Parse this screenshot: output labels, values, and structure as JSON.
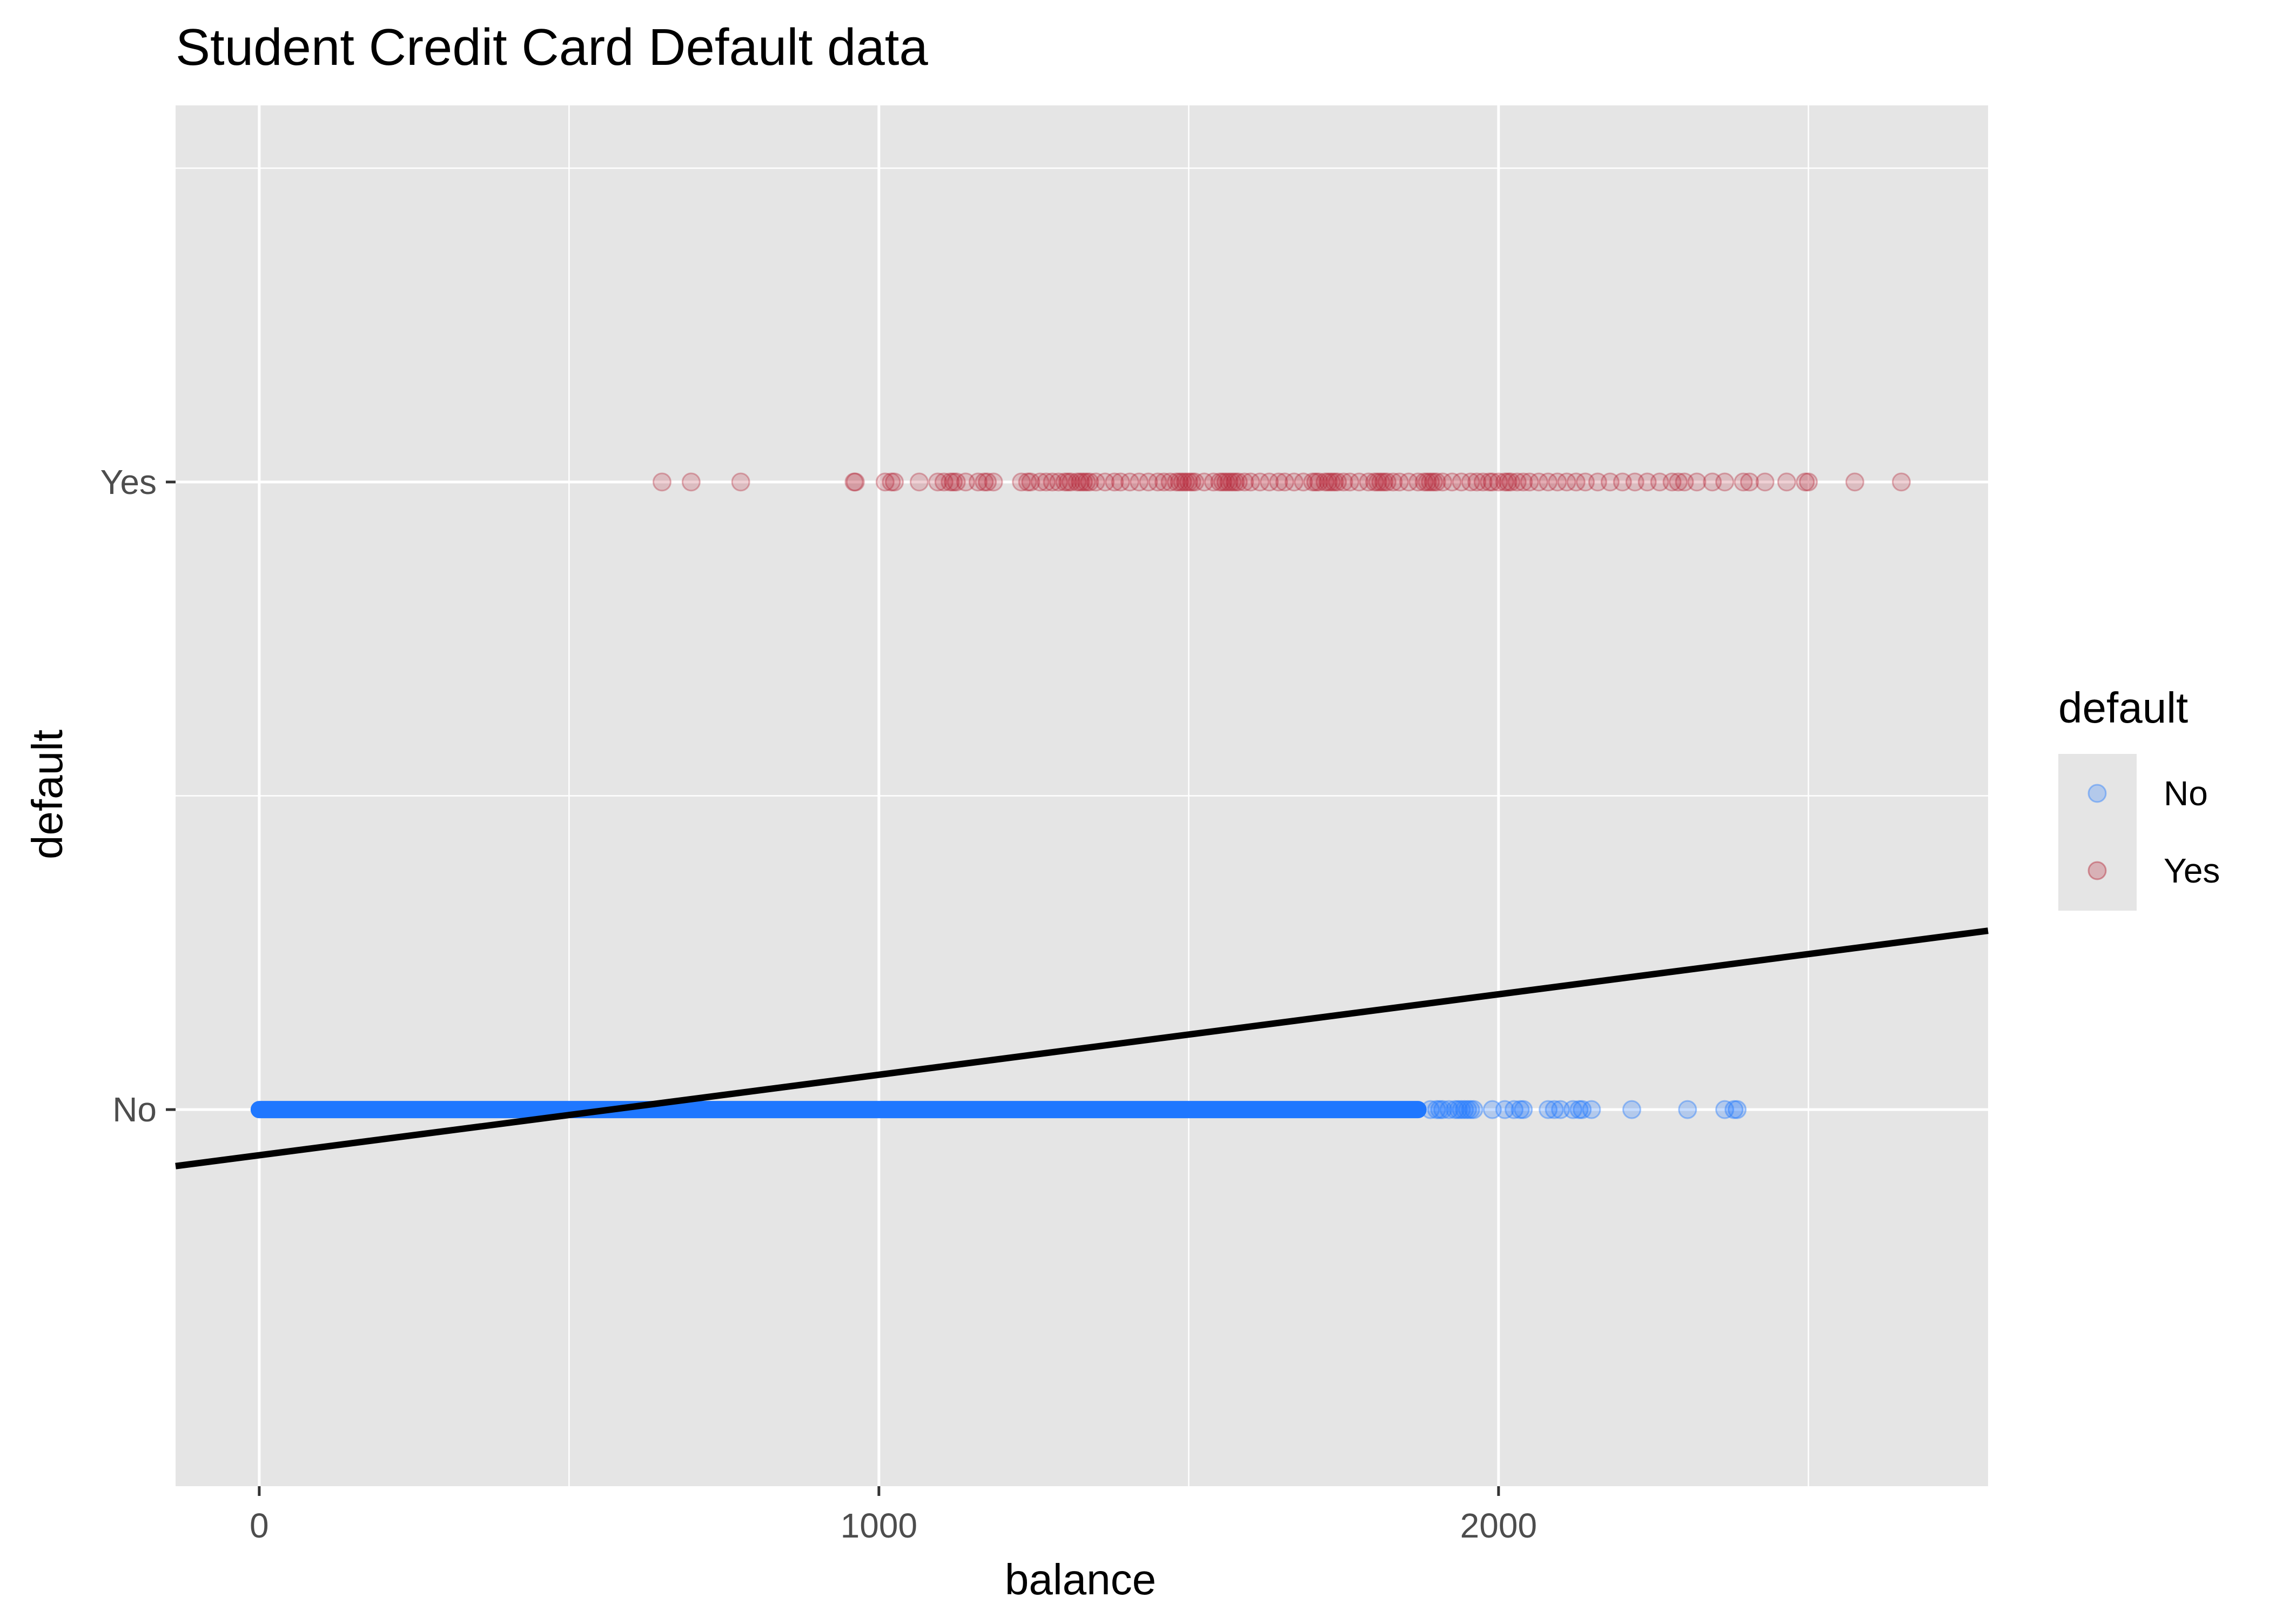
{
  "chart_data": {
    "type": "scatter",
    "title": "Student Credit Card Default data",
    "xlabel": "balance",
    "ylabel": "default",
    "x_ticks": [
      0,
      1000,
      2000
    ],
    "y_categories": [
      "No",
      "Yes"
    ],
    "xlim": [
      -135,
      2790
    ],
    "ylim": [
      0.4,
      2.6
    ],
    "grid": true,
    "legend": {
      "title": "default",
      "placement": "right",
      "entries": [
        {
          "label": "No",
          "color": "#1f77ff"
        },
        {
          "label": "Yes",
          "color": "#b2182b"
        }
      ]
    },
    "series": [
      {
        "name": "No",
        "category": "No",
        "color": "#1f77ff",
        "opacity": 0.25,
        "x": [
          1890,
          1900,
          1905,
          1910,
          1920,
          1930,
          1935,
          1940,
          1945,
          1950,
          1955,
          1960,
          1990,
          2010,
          2025,
          2035,
          2040,
          2080,
          2090,
          2100,
          2120,
          2130,
          2135,
          2150,
          2215,
          2305,
          2365,
          2380,
          2385
        ],
        "dense_range": [
          0,
          1870
        ]
      },
      {
        "name": "Yes",
        "category": "Yes",
        "color": "#b2182b",
        "opacity": 0.2,
        "x": [
          650,
          697,
          777,
          960,
          962,
          1010,
          1020,
          1025,
          1065,
          1095,
          1105,
          1115,
          1120,
          1125,
          1140,
          1160,
          1170,
          1175,
          1185,
          1230,
          1240,
          1245,
          1260,
          1270,
          1280,
          1290,
          1300,
          1305,
          1310,
          1320,
          1325,
          1330,
          1335,
          1340,
          1350,
          1365,
          1380,
          1390,
          1405,
          1420,
          1435,
          1450,
          1460,
          1470,
          1480,
          1485,
          1490,
          1495,
          1500,
          1505,
          1510,
          1525,
          1540,
          1550,
          1555,
          1560,
          1565,
          1570,
          1575,
          1580,
          1590,
          1600,
          1615,
          1630,
          1645,
          1655,
          1670,
          1685,
          1700,
          1705,
          1710,
          1720,
          1725,
          1730,
          1735,
          1740,
          1750,
          1760,
          1775,
          1790,
          1800,
          1805,
          1810,
          1815,
          1820,
          1830,
          1840,
          1855,
          1870,
          1880,
          1885,
          1890,
          1895,
          1900,
          1910,
          1925,
          1940,
          1955,
          1965,
          1975,
          1985,
          1990,
          2000,
          2010,
          2015,
          2020,
          2030,
          2040,
          2050,
          2065,
          2080,
          2095,
          2110,
          2125,
          2140,
          2160,
          2180,
          2200,
          2220,
          2240,
          2260,
          2280,
          2290,
          2300,
          2320,
          2345,
          2365,
          2395,
          2405,
          2430,
          2465,
          2495,
          2500,
          2575,
          2650
        ]
      }
    ],
    "fit_line": {
      "type": "linear",
      "color": "#000000",
      "points": [
        [
          -135,
          0.91
        ],
        [
          2790,
          1.285
        ]
      ]
    }
  }
}
